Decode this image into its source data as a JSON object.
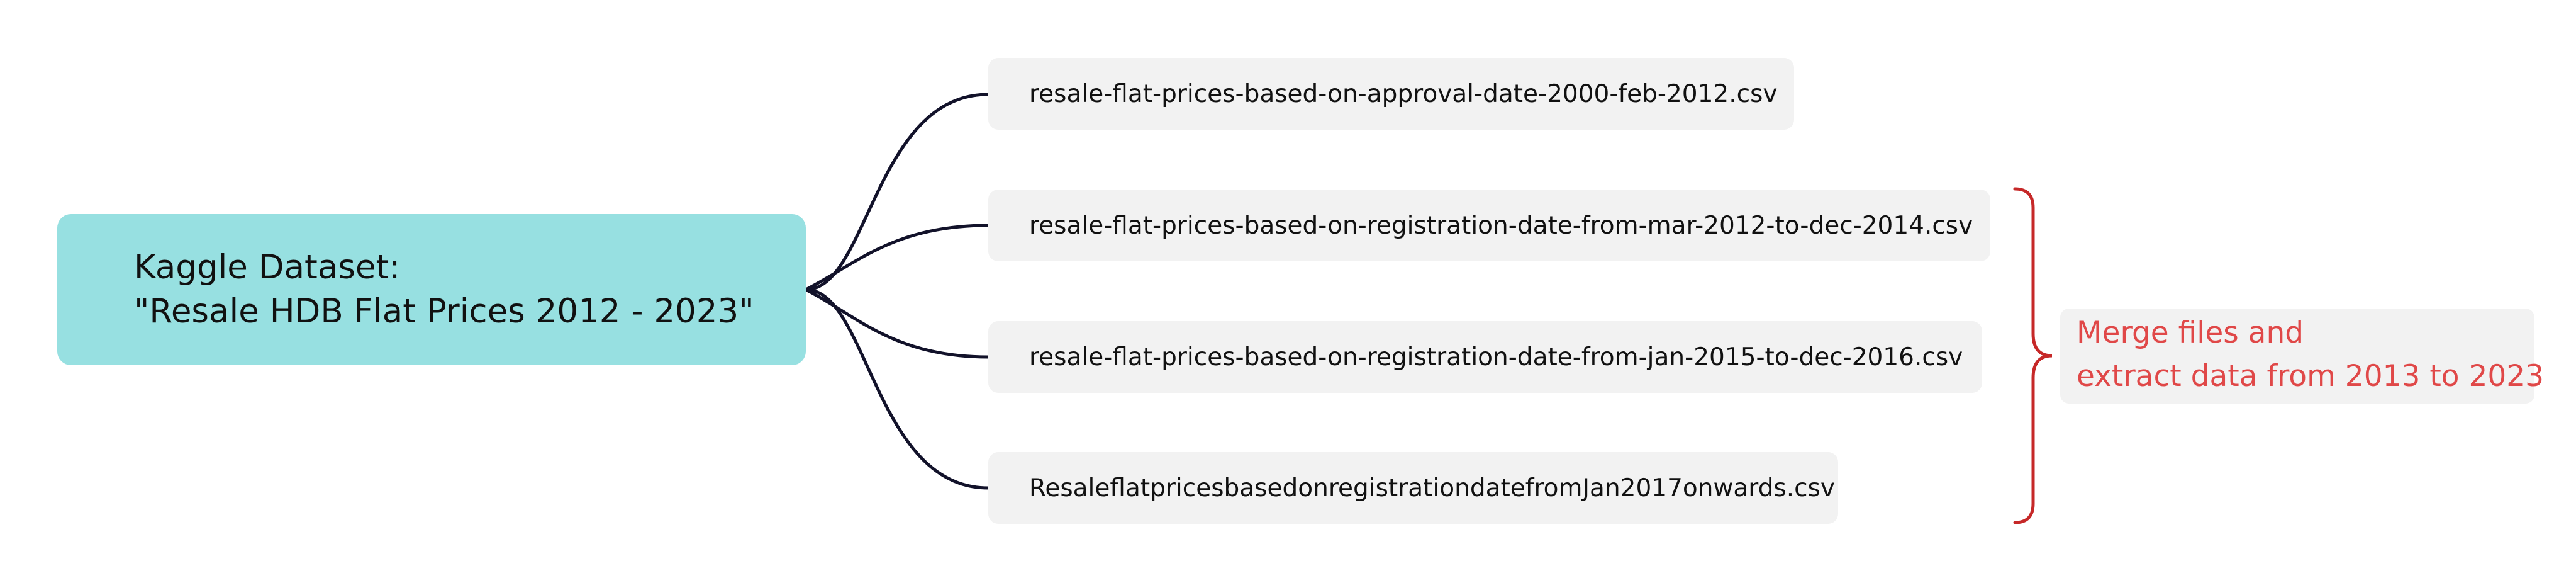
{
  "root": {
    "line1": "Kaggle Dataset:",
    "line2": "\"Resale HDB Flat Prices 2012 - 2023\""
  },
  "files": [
    "resale-flat-prices-based-on-approval-date-2000-feb-2012.csv",
    "resale-flat-prices-based-on-registration-date-from-mar-2012-to-dec-2014.csv",
    "resale-flat-prices-based-on-registration-date-from-jan-2015-to-dec-2016.csv",
    "ResaleflatpricesbasedonregistrationdatefromJan2017onwards.csv"
  ],
  "note": {
    "line1": "Merge files and",
    "line2": "extract data from 2013 to 2023"
  },
  "colors": {
    "root_fill": "#97e0e1",
    "leaf_fill": "#f2f2f2",
    "connector": "#12122a",
    "bracket": "#c62828",
    "note_text": "#e04848"
  }
}
